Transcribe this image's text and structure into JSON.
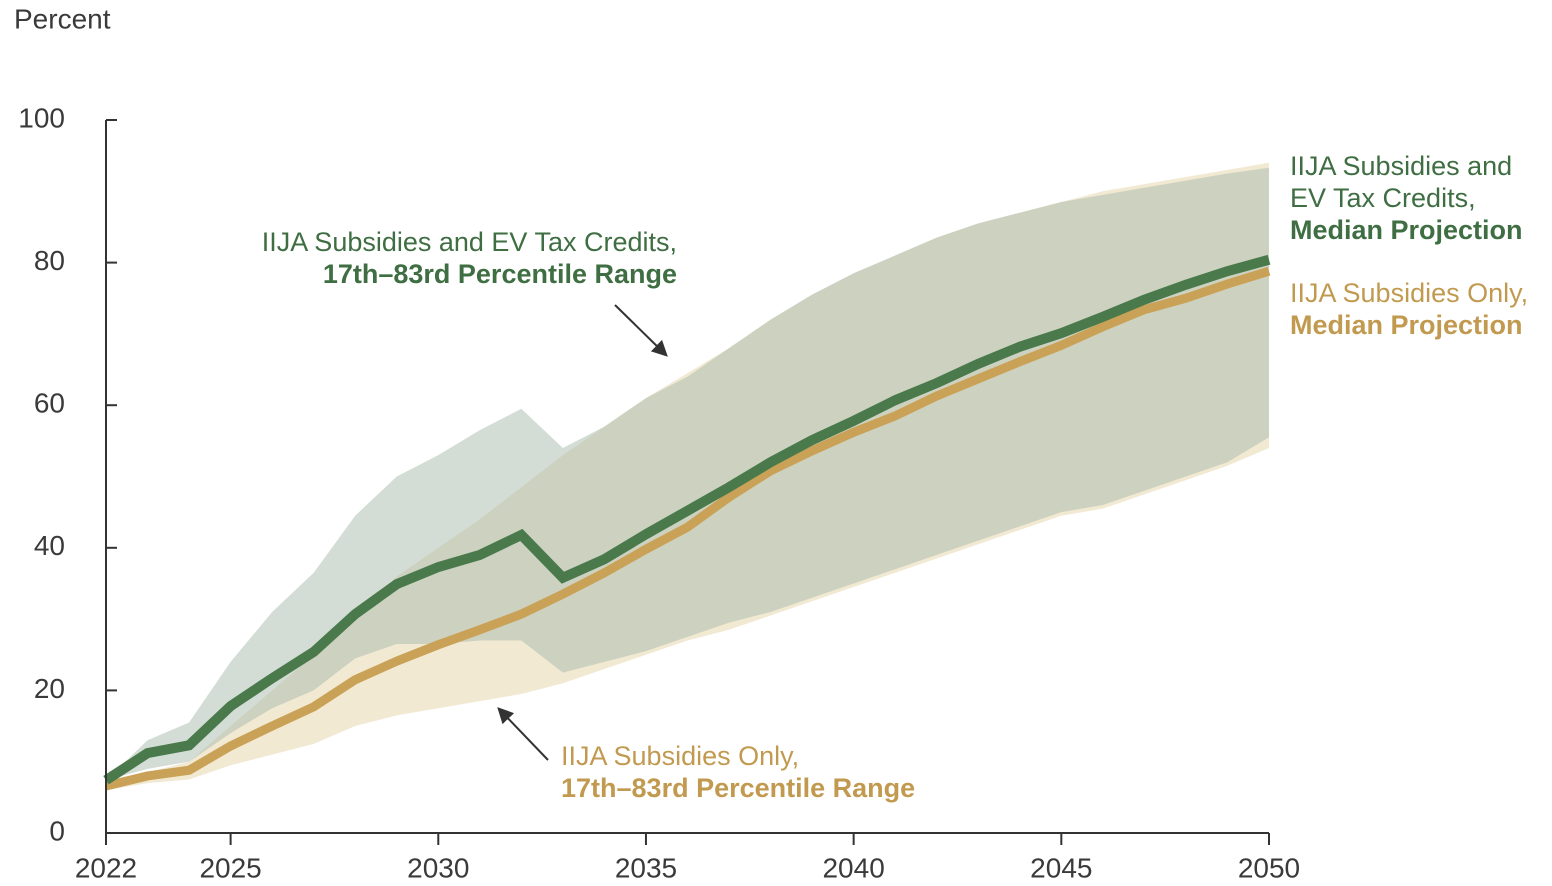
{
  "chart_data": {
    "type": "line",
    "y_axis_label": "Percent",
    "x": [
      2022,
      2023,
      2024,
      2025,
      2026,
      2027,
      2028,
      2029,
      2030,
      2031,
      2032,
      2033,
      2034,
      2035,
      2036,
      2037,
      2038,
      2039,
      2040,
      2041,
      2042,
      2043,
      2044,
      2045,
      2046,
      2047,
      2048,
      2049,
      2050
    ],
    "xlim": [
      2022,
      2050
    ],
    "xticks": [
      2022,
      2025,
      2030,
      2035,
      2040,
      2045,
      2050
    ],
    "ylim": [
      0,
      100
    ],
    "yticks": [
      0,
      20,
      40,
      60,
      80,
      100
    ],
    "grid": false,
    "bands": [
      {
        "label_lines": [
          {
            "text": "IIJA Subsidies Only,",
            "bold": false
          },
          {
            "text": "17th–83rd Percentile Range",
            "bold": true
          }
        ],
        "color": "#e6d3a8",
        "label_color": "#c19a50",
        "lower": [
          6,
          7,
          7.5,
          9.5,
          11,
          12.5,
          15,
          16.5,
          17.5,
          18.5,
          19.5,
          21,
          23,
          25,
          27,
          28.5,
          30.5,
          32.5,
          34.5,
          36.5,
          38.5,
          40.5,
          42.5,
          44.5,
          45.5,
          47.5,
          49.5,
          51.5,
          54
        ],
        "upper": [
          6.6,
          8.5,
          10,
          15,
          20,
          25,
          30,
          36,
          40,
          44,
          48.5,
          53,
          57,
          61,
          64.5,
          68,
          72,
          75.5,
          78.5,
          81,
          83.5,
          85.5,
          87,
          88.5,
          90,
          91,
          92,
          93,
          94
        ]
      },
      {
        "label_lines": [
          {
            "text": "IIJA Subsidies and EV Tax Credits,",
            "bold": false
          },
          {
            "text": "17th–83rd Percentile Range",
            "bold": true
          }
        ],
        "color": "#a8bcae",
        "label_color": "#3e6e42",
        "lower": [
          7.4,
          9,
          10,
          14,
          17.5,
          20,
          24.5,
          26.5,
          26.5,
          27,
          27,
          22.5,
          24,
          25.5,
          27.5,
          29.5,
          31,
          33,
          35,
          37,
          39,
          41,
          43,
          45,
          46,
          48,
          50,
          52,
          55.5
        ],
        "upper": [
          7.4,
          13,
          15.5,
          24,
          31,
          36.5,
          44.5,
          50,
          53,
          56.5,
          59.5,
          54,
          57,
          61,
          64,
          68,
          72,
          75.5,
          78.5,
          81,
          83.5,
          85.5,
          87,
          88.5,
          89.5,
          90.5,
          91.5,
          92.5,
          93.3
        ]
      }
    ],
    "series": [
      {
        "label_lines": [
          {
            "text": "IIJA Subsidies Only,",
            "bold": false
          },
          {
            "text": "Median Projection",
            "bold": true
          }
        ],
        "color": "#c9a257",
        "label_color": "#c19a50",
        "values": [
          6.6,
          8,
          8.8,
          12.2,
          15,
          17.7,
          21.5,
          24.1,
          26.4,
          28.5,
          30.7,
          33.5,
          36.5,
          39.8,
          42.9,
          47.1,
          50.8,
          53.6,
          56.2,
          58.5,
          61.3,
          63.7,
          66.1,
          68.4,
          71,
          73.4,
          75,
          77,
          78.8
        ]
      },
      {
        "label_lines": [
          {
            "text": "IIJA Subsidies and",
            "bold": false
          },
          {
            "text": "EV Tax Credits,",
            "bold": false
          },
          {
            "text": "Median Projection",
            "bold": true
          }
        ],
        "color": "#4a7a4b",
        "label_color": "#3e6e42",
        "values": [
          7.4,
          11.2,
          12.3,
          17.8,
          21.7,
          25.4,
          30.7,
          34.9,
          37.3,
          39,
          41.8,
          35.8,
          38.4,
          41.9,
          45.2,
          48.5,
          52,
          55.1,
          57.8,
          60.7,
          63.1,
          65.8,
          68.2,
          70.1,
          72.4,
          74.8,
          76.9,
          78.8,
          80.4
        ]
      }
    ]
  }
}
